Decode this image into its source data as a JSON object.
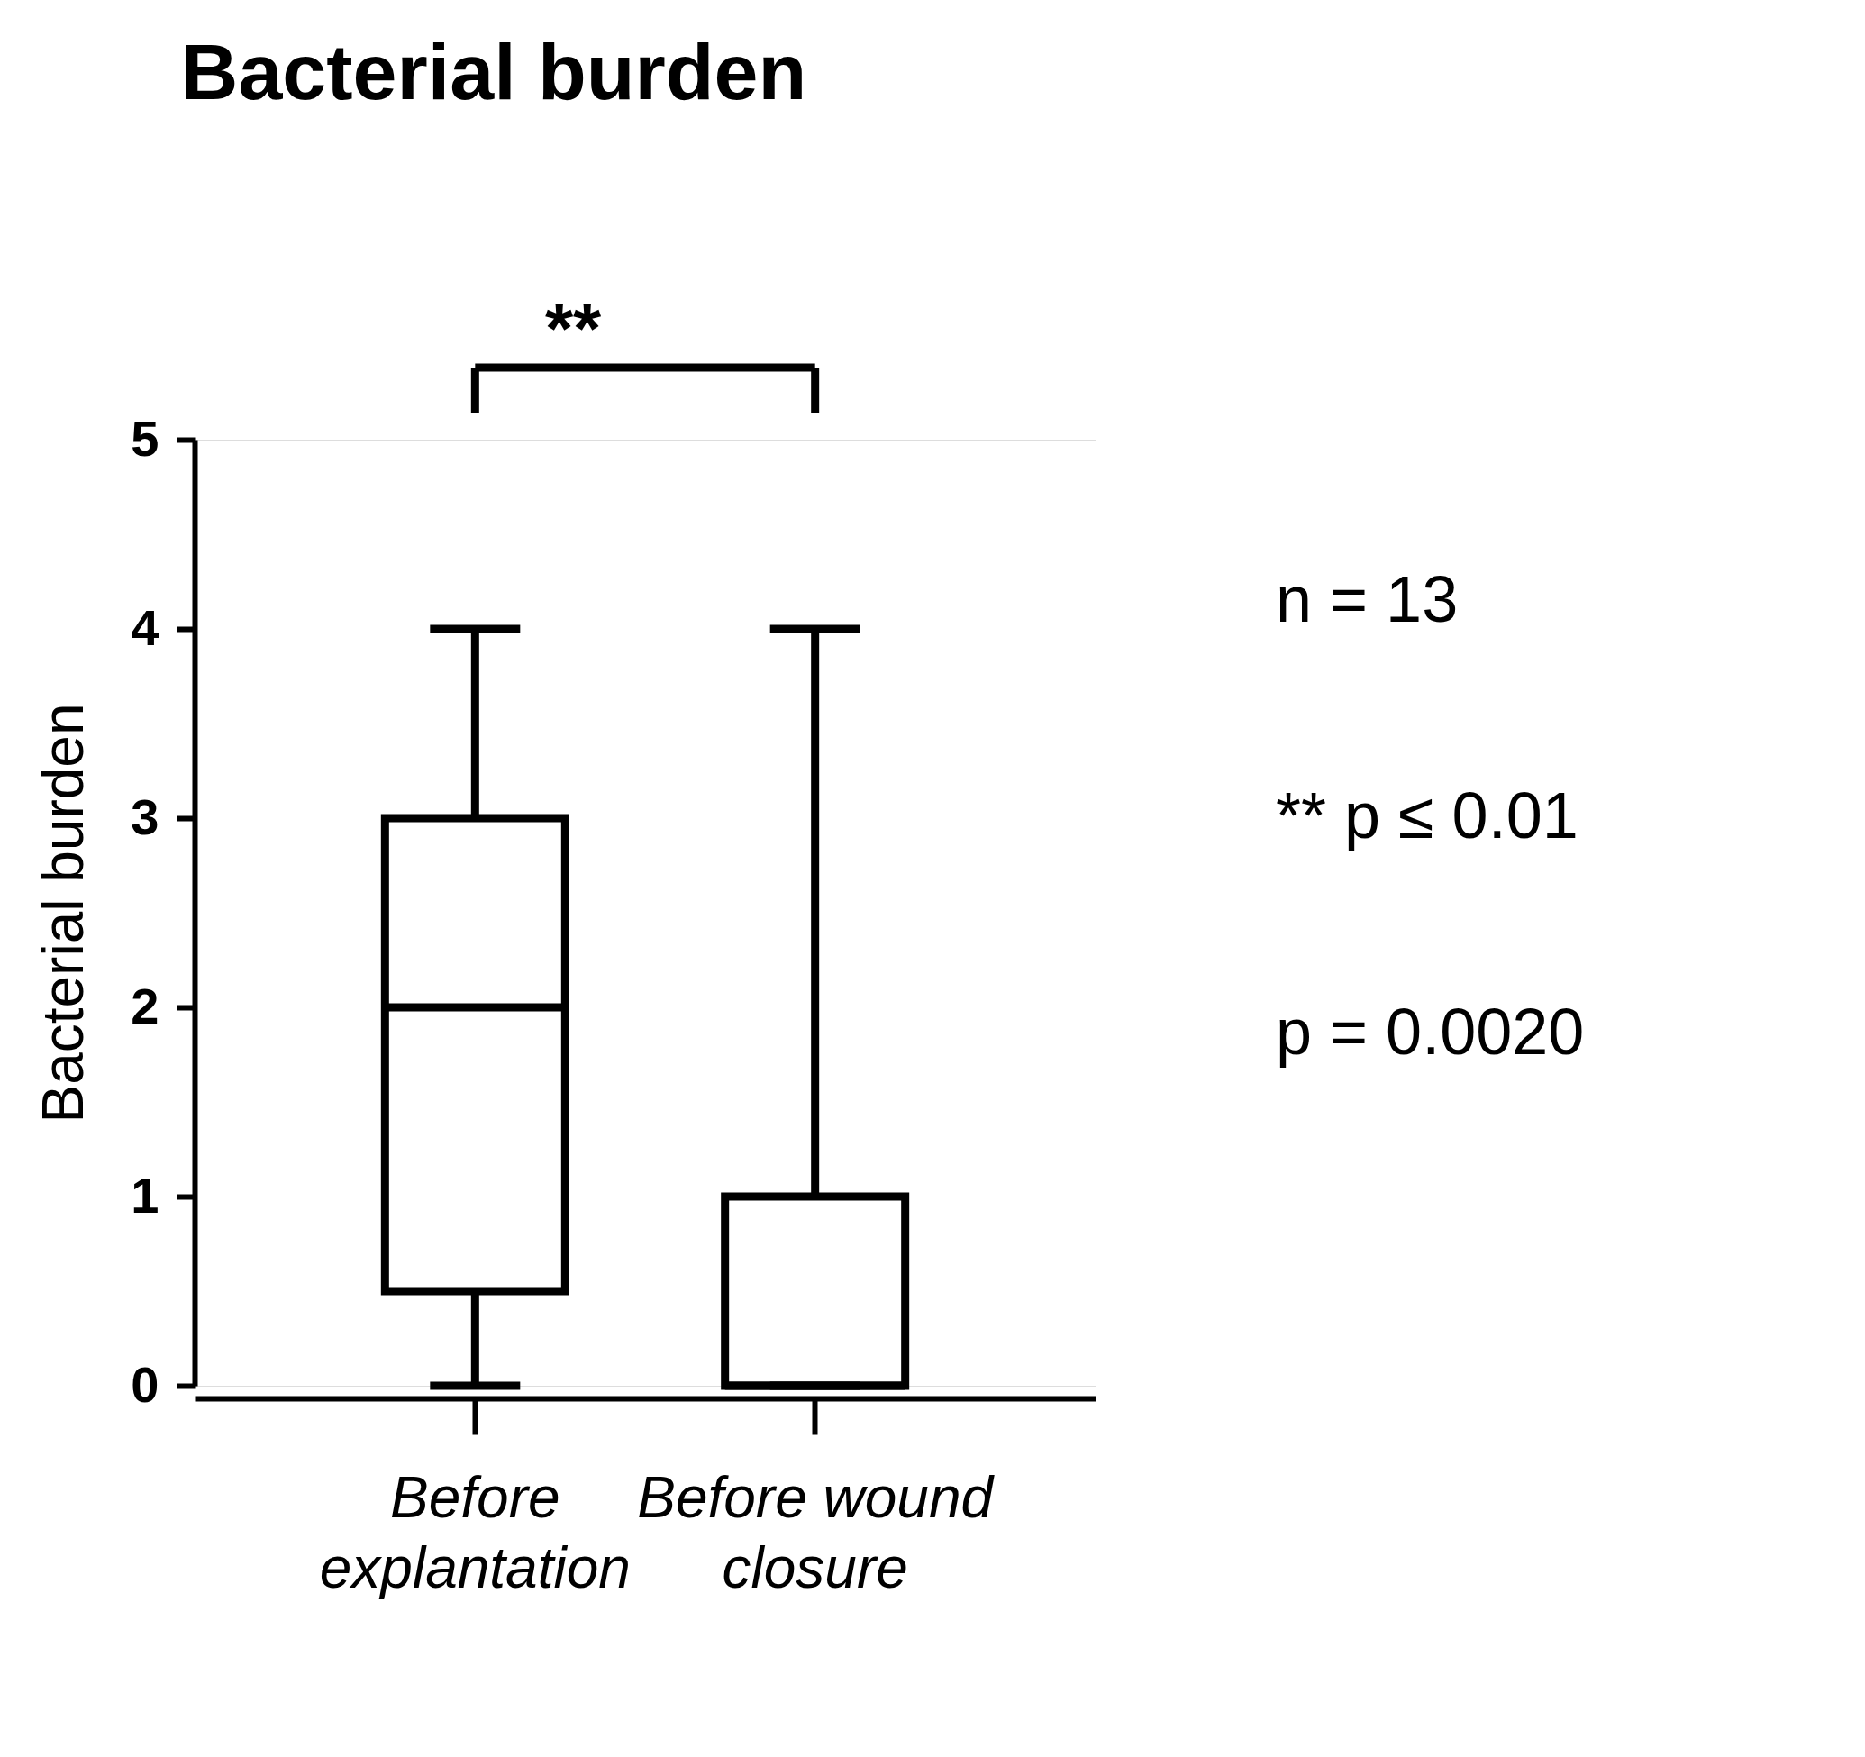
{
  "chart_data": {
    "type": "box",
    "title": "Bacterial burden",
    "ylabel": "Bacterial burden",
    "categories": [
      "Before explantation",
      "Before wound closure"
    ],
    "boxes": [
      {
        "low": 0,
        "q1": 0.5,
        "median": 2,
        "q3": 3,
        "high": 4
      },
      {
        "low": 0,
        "q1": 0,
        "median": 0,
        "q3": 1,
        "high": 4
      }
    ],
    "ylim": [
      0,
      5
    ],
    "yticks": [
      0,
      1,
      2,
      3,
      4,
      5
    ],
    "grid": false,
    "annotations": [
      "**",
      "n = 13",
      "** p ≤ 0.01",
      "p = 0.0020"
    ]
  }
}
